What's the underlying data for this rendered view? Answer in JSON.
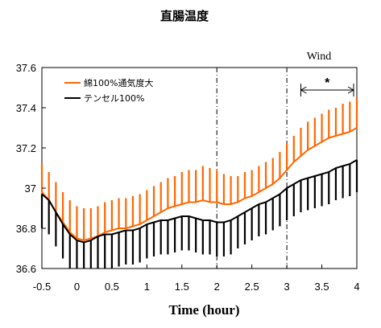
{
  "chart_data": {
    "type": "line",
    "title": "直腸温度",
    "xlabel": "Time (hour)",
    "ylabel": "",
    "xlim": [
      -0.5,
      4
    ],
    "ylim": [
      36.6,
      37.6
    ],
    "x_ticks": [
      "-0.5",
      "0",
      "0.5",
      "1",
      "1.5",
      "2",
      "2.5",
      "3",
      "3.5",
      "4"
    ],
    "y_ticks": [
      "36.6",
      "36.8",
      "37",
      "37.2",
      "37.4",
      "37.6"
    ],
    "legend_position": "top-left",
    "grid": false,
    "error_bars": "one-sided, vertical, at every sample",
    "vlines": [
      2,
      3
    ],
    "series": [
      {
        "name": "綿100%通気度大",
        "color": "#ff6600",
        "errorbar_direction": "up",
        "points": [
          [
            -0.5,
            36.98
          ],
          [
            -0.4,
            36.94
          ],
          [
            -0.3,
            36.88
          ],
          [
            -0.2,
            36.83
          ],
          [
            -0.1,
            36.78
          ],
          [
            0,
            36.75
          ],
          [
            0.1,
            36.74
          ],
          [
            0.2,
            36.75
          ],
          [
            0.3,
            36.76
          ],
          [
            0.4,
            36.78
          ],
          [
            0.5,
            36.79
          ],
          [
            0.6,
            36.8
          ],
          [
            0.7,
            36.8
          ],
          [
            0.8,
            36.81
          ],
          [
            0.9,
            36.82
          ],
          [
            1,
            36.84
          ],
          [
            1.1,
            36.86
          ],
          [
            1.2,
            36.88
          ],
          [
            1.3,
            36.9
          ],
          [
            1.4,
            36.91
          ],
          [
            1.5,
            36.92
          ],
          [
            1.6,
            36.93
          ],
          [
            1.7,
            36.93
          ],
          [
            1.8,
            36.94
          ],
          [
            1.9,
            36.93
          ],
          [
            2,
            36.93
          ],
          [
            2.1,
            36.92
          ],
          [
            2.2,
            36.92
          ],
          [
            2.3,
            36.93
          ],
          [
            2.4,
            36.95
          ],
          [
            2.5,
            36.96
          ],
          [
            2.6,
            36.98
          ],
          [
            2.7,
            37.0
          ],
          [
            2.8,
            37.02
          ],
          [
            2.9,
            37.05
          ],
          [
            3,
            37.09
          ],
          [
            3.1,
            37.13
          ],
          [
            3.2,
            37.16
          ],
          [
            3.3,
            37.19
          ],
          [
            3.4,
            37.21
          ],
          [
            3.5,
            37.23
          ],
          [
            3.6,
            37.25
          ],
          [
            3.7,
            37.26
          ],
          [
            3.8,
            37.27
          ],
          [
            3.9,
            37.28
          ],
          [
            4,
            37.3
          ]
        ],
        "errors": [
          0.14,
          0.14,
          0.15,
          0.15,
          0.16,
          0.16,
          0.16,
          0.15,
          0.15,
          0.15,
          0.15,
          0.15,
          0.15,
          0.15,
          0.15,
          0.15,
          0.15,
          0.15,
          0.15,
          0.15,
          0.16,
          0.16,
          0.16,
          0.17,
          0.17,
          0.16,
          0.15,
          0.14,
          0.13,
          0.13,
          0.13,
          0.13,
          0.13,
          0.13,
          0.13,
          0.13,
          0.13,
          0.14,
          0.14,
          0.14,
          0.14,
          0.14,
          0.14,
          0.15,
          0.15,
          0.15
        ]
      },
      {
        "name": "テンセル100%",
        "color": "#000000",
        "errorbar_direction": "down",
        "points": [
          [
            -0.5,
            36.97
          ],
          [
            -0.4,
            36.94
          ],
          [
            -0.3,
            36.88
          ],
          [
            -0.2,
            36.82
          ],
          [
            -0.1,
            36.77
          ],
          [
            0,
            36.74
          ],
          [
            0.1,
            36.73
          ],
          [
            0.2,
            36.74
          ],
          [
            0.3,
            36.76
          ],
          [
            0.4,
            36.77
          ],
          [
            0.5,
            36.77
          ],
          [
            0.6,
            36.78
          ],
          [
            0.7,
            36.79
          ],
          [
            0.8,
            36.79
          ],
          [
            0.9,
            36.8
          ],
          [
            1,
            36.82
          ],
          [
            1.1,
            36.83
          ],
          [
            1.2,
            36.84
          ],
          [
            1.3,
            36.84
          ],
          [
            1.4,
            36.85
          ],
          [
            1.5,
            36.86
          ],
          [
            1.6,
            36.86
          ],
          [
            1.7,
            36.85
          ],
          [
            1.8,
            36.84
          ],
          [
            1.9,
            36.84
          ],
          [
            2,
            36.83
          ],
          [
            2.1,
            36.83
          ],
          [
            2.2,
            36.84
          ],
          [
            2.3,
            36.86
          ],
          [
            2.4,
            36.88
          ],
          [
            2.5,
            36.9
          ],
          [
            2.6,
            36.92
          ],
          [
            2.7,
            36.93
          ],
          [
            2.8,
            36.95
          ],
          [
            2.9,
            36.97
          ],
          [
            3,
            37.0
          ],
          [
            3.1,
            37.02
          ],
          [
            3.2,
            37.04
          ],
          [
            3.3,
            37.05
          ],
          [
            3.4,
            37.06
          ],
          [
            3.5,
            37.07
          ],
          [
            3.6,
            37.08
          ],
          [
            3.7,
            37.1
          ],
          [
            3.8,
            37.11
          ],
          [
            3.9,
            37.12
          ],
          [
            4,
            37.14
          ]
        ],
        "errors": [
          0.17,
          0.17,
          0.17,
          0.17,
          0.17,
          0.17,
          0.17,
          0.17,
          0.17,
          0.17,
          0.17,
          0.17,
          0.17,
          0.17,
          0.17,
          0.17,
          0.17,
          0.17,
          0.17,
          0.17,
          0.17,
          0.17,
          0.17,
          0.17,
          0.17,
          0.17,
          0.17,
          0.17,
          0.16,
          0.16,
          0.16,
          0.16,
          0.16,
          0.16,
          0.16,
          0.16,
          0.16,
          0.16,
          0.16,
          0.16,
          0.16,
          0.16,
          0.16,
          0.16,
          0.16,
          0.16
        ]
      }
    ],
    "annotations": [
      {
        "text": "Wind",
        "x_data": 3.3,
        "y_data": 37.6
      },
      {
        "text": "*",
        "type": "significance-bracket",
        "x_range": [
          3.2,
          4
        ],
        "y_data": 37.45
      }
    ]
  }
}
